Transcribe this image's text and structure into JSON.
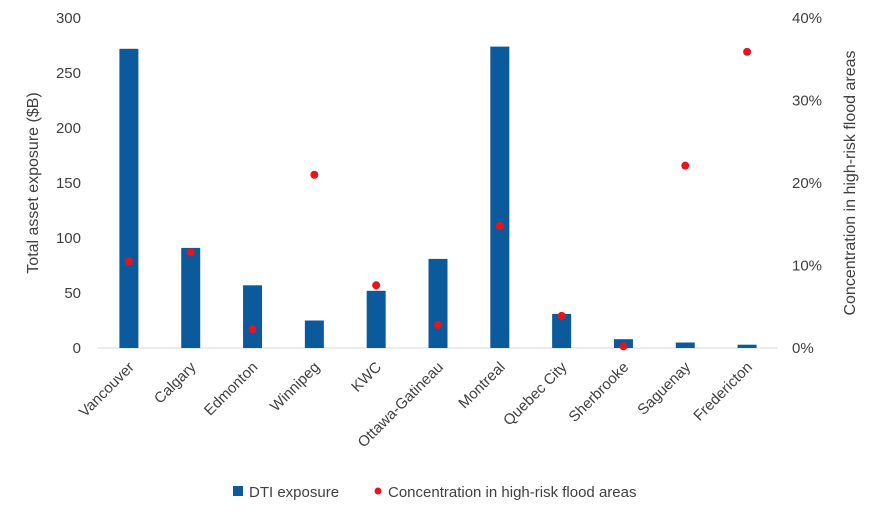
{
  "chart_data": {
    "type": "bar",
    "categories": [
      "Vancouver",
      "Calgary",
      "Edmonton",
      "Winnipeg",
      "KWC",
      "Ottawa-Gatineau",
      "Montreal",
      "Quebec City",
      "Sherbrooke",
      "Saguenay",
      "Fredericton"
    ],
    "series": [
      {
        "name": "DTI exposure",
        "type": "bar",
        "axis": "left",
        "color": "#0b5a9c",
        "values": [
          272,
          91,
          57,
          25,
          52,
          81,
          274,
          31,
          8,
          5,
          3
        ]
      },
      {
        "name": "Concentration in high-risk flood areas",
        "type": "scatter",
        "axis": "right",
        "color": "#e8141c",
        "values": [
          0.105,
          0.116,
          0.023,
          0.21,
          0.076,
          0.028,
          0.148,
          0.039,
          0.002,
          0.221,
          0.359
        ]
      }
    ],
    "ylabel": "Total asset exposure ($B)",
    "ylim": [
      0,
      300
    ],
    "yticks": [
      "0",
      "50",
      "100",
      "150",
      "200",
      "250",
      "300"
    ],
    "ylabel_right": "Concentration in high-risk flood areas",
    "ylim_right": [
      0,
      0.4
    ],
    "yticks_right": [
      "0%",
      "10%",
      "20%",
      "30%",
      "40%"
    ],
    "legend_position": "bottom-center",
    "grid": false
  }
}
